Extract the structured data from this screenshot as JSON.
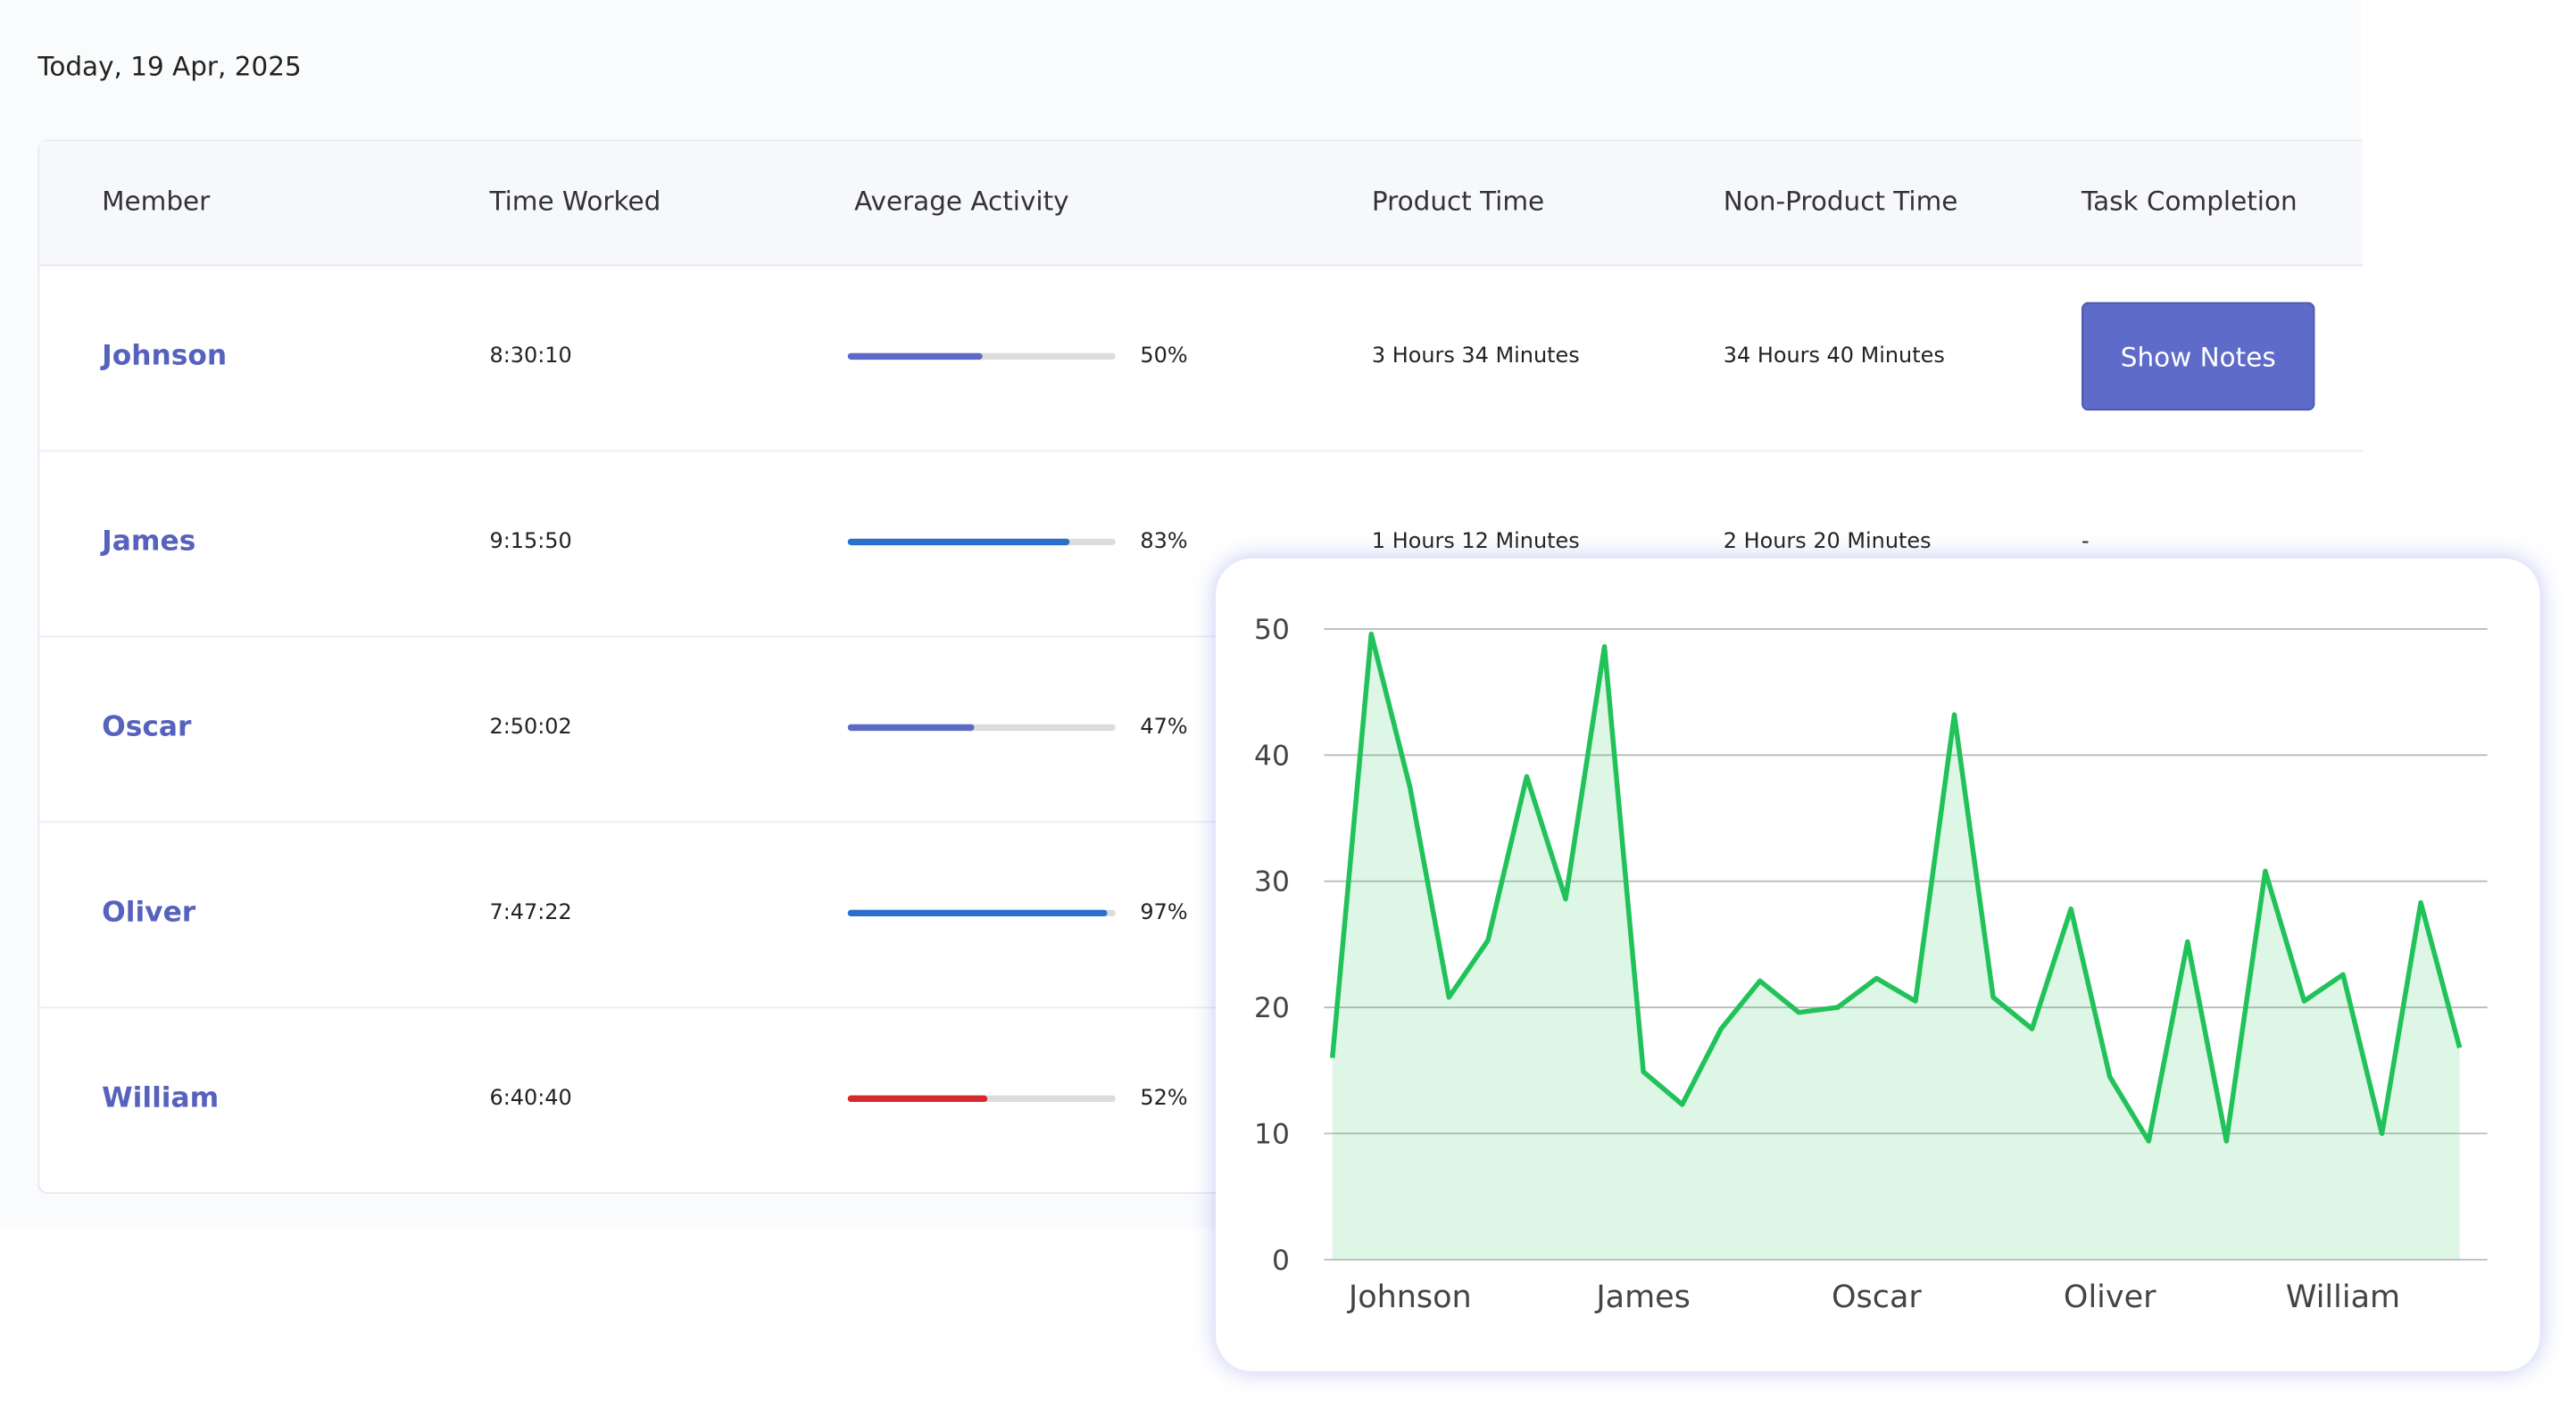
{
  "header": {
    "date": "Today, 19 Apr, 2025"
  },
  "table": {
    "columns": [
      "Member",
      "Time Worked",
      "Average Activity",
      "Product Time",
      "Non-Product Time",
      "Task Completion"
    ],
    "rows": [
      {
        "member": "Johnson",
        "time": "8:30:10",
        "activity": {
          "value": 50,
          "label": "50%"
        },
        "color": "#5b6ac7",
        "product": "3 Hours 34 Minutes",
        "nonproduct": "34 Hours 40 Minutes",
        "task": "Show Notes"
      },
      {
        "member": "James",
        "time": "9:15:50",
        "activity": {
          "value": 83,
          "label": "83%"
        },
        "color": "#2b6fcd",
        "product": "1 Hours 12 Minutes",
        "nonproduct": "2 Hours 20 Minutes",
        "task": "-"
      },
      {
        "member": "Oscar",
        "time": "2:50:02",
        "activity": {
          "value": 47,
          "label": "47%"
        },
        "color": "#5b6ac7"
      },
      {
        "member": "Oliver",
        "time": "7:47:22",
        "activity": {
          "value": 97,
          "label": "97%"
        },
        "color": "#2b6fcd"
      },
      {
        "member": "William",
        "time": "6:40:40",
        "activity": {
          "value": 52,
          "label": "52%"
        },
        "color": "#d7282c"
      }
    ]
  },
  "chart_data": {
    "type": "area",
    "color": "#22c25a",
    "categories": [
      null,
      null,
      "Johnson",
      null,
      null,
      null,
      null,
      null,
      "James",
      null,
      null,
      null,
      null,
      null,
      "Oscar",
      null,
      null,
      null,
      null,
      null,
      "Oliver",
      null,
      null,
      null,
      null,
      null,
      "William",
      null,
      null,
      null
    ],
    "values": [
      16.0,
      49.6,
      37.4,
      20.8,
      25.3,
      38.3,
      28.6,
      48.6,
      14.9,
      12.3,
      18.3,
      22.1,
      19.6,
      20.0,
      22.3,
      20.5,
      43.2,
      20.8,
      18.3,
      27.8,
      14.5,
      9.4,
      25.2,
      9.4,
      30.8,
      20.5,
      22.6,
      10.0,
      28.3,
      16.8
    ],
    "ylim": [
      0,
      50
    ],
    "yticks": [
      0,
      10,
      20,
      30,
      40,
      50
    ],
    "grid": true
  }
}
